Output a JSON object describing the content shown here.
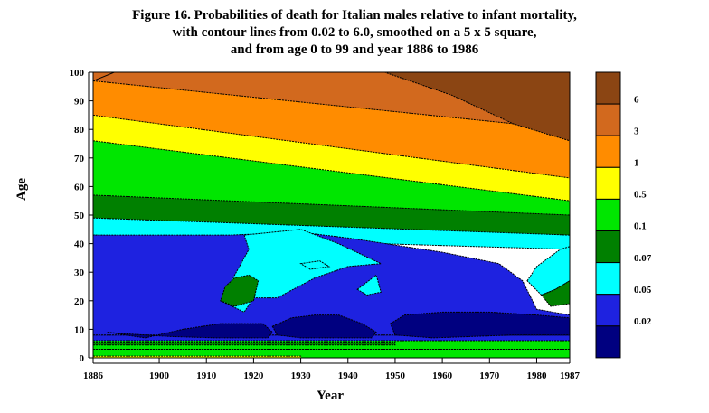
{
  "title_lines": [
    "Figure 16. Probabilities of death for Italian males relative to infant mortality,",
    "with contour lines from 0.02 to 6.0, smoothed on a 5 x 5 square,",
    "and from age 0 to 99 and year 1886 to 1986"
  ],
  "chart_data": {
    "type": "heatmap",
    "xlabel": "Year",
    "ylabel": "Age",
    "xlim": [
      1886,
      1987
    ],
    "ylim": [
      0,
      100
    ],
    "x_ticks": [
      1886,
      1900,
      1910,
      1920,
      1930,
      1940,
      1950,
      1960,
      1970,
      1980,
      1987
    ],
    "y_ticks": [
      0,
      10,
      20,
      30,
      40,
      50,
      60,
      70,
      80,
      90,
      100
    ],
    "legend": {
      "position": "right",
      "bins": [
        {
          "label": "6",
          "color": "#8B4513"
        },
        {
          "label": "3",
          "color": "#D2691E"
        },
        {
          "label": "1",
          "color": "#FF8C00"
        },
        {
          "label": "0.5",
          "color": "#FFFF00"
        },
        {
          "label": "0.1",
          "color": "#00E600"
        },
        {
          "label": "0.07",
          "color": "#008000"
        },
        {
          "label": "0.05",
          "color": "#00FFFF"
        },
        {
          "label": "0.02",
          "color": "#1E22E0"
        },
        {
          "label": "",
          "color": "#000080"
        }
      ]
    },
    "regions": [
      {
        "level": "0.1",
        "points": [
          [
            1886,
            0
          ],
          [
            1987,
            0
          ],
          [
            1987,
            3
          ],
          [
            1886,
            3
          ]
        ]
      },
      {
        "level": "0.5",
        "points": [
          [
            1886,
            0
          ],
          [
            1930,
            0
          ],
          [
            1930,
            0.6
          ],
          [
            1886,
            0.6
          ]
        ]
      },
      {
        "level": "0.1",
        "points": [
          [
            1886,
            3
          ],
          [
            1987,
            3
          ],
          [
            1987,
            8
          ],
          [
            1886,
            8
          ]
        ]
      },
      {
        "level": "0.02",
        "points": [
          [
            1886,
            6
          ],
          [
            1987,
            6
          ],
          [
            1987,
            8
          ],
          [
            1886,
            8
          ]
        ]
      },
      {
        "level": "0.07",
        "points": [
          [
            1886,
            4.5
          ],
          [
            1950,
            4.5
          ],
          [
            1950,
            5.5
          ],
          [
            1886,
            5.5
          ]
        ]
      },
      {
        "level": "0.02",
        "points": [
          [
            1886,
            8
          ],
          [
            1987,
            8
          ],
          [
            1987,
            15
          ],
          [
            1980,
            17
          ],
          [
            1977,
            27
          ],
          [
            1972,
            33
          ],
          [
            1960,
            37
          ],
          [
            1948,
            40
          ],
          [
            1940,
            42
          ],
          [
            1930,
            44
          ],
          [
            1915,
            43
          ],
          [
            1886,
            43
          ]
        ]
      },
      {
        "level": "0.05",
        "points": [
          [
            1918,
            43
          ],
          [
            1919,
            38
          ],
          [
            1916,
            29
          ],
          [
            1913,
            20
          ],
          [
            1918,
            16
          ],
          [
            1920,
            21
          ],
          [
            1925,
            21
          ],
          [
            1933,
            28
          ],
          [
            1940,
            32
          ],
          [
            1947,
            33
          ],
          [
            1938,
            40
          ],
          [
            1930,
            45
          ]
        ]
      },
      {
        "level": "0.07",
        "points": [
          [
            1914,
            25
          ],
          [
            1916,
            28
          ],
          [
            1919,
            29
          ],
          [
            1921,
            27
          ],
          [
            1920,
            20
          ],
          [
            1916,
            18
          ],
          [
            1913,
            20
          ]
        ]
      },
      {
        "level": "0.05",
        "points": [
          [
            1930,
            33
          ],
          [
            1934,
            34
          ],
          [
            1936,
            32
          ],
          [
            1932,
            31
          ]
        ]
      },
      {
        "level": "0.05",
        "points": [
          [
            1942,
            24
          ],
          [
            1946,
            29
          ],
          [
            1947,
            23
          ],
          [
            1944,
            22
          ]
        ]
      },
      {
        "level": "0.05",
        "points": [
          [
            1978,
            27
          ],
          [
            1980,
            32
          ],
          [
            1985,
            38
          ],
          [
            1987,
            39
          ],
          [
            1987,
            27
          ],
          [
            1984,
            24
          ],
          [
            1981,
            22
          ]
        ]
      },
      {
        "level": "0.07",
        "points": [
          [
            1981,
            22
          ],
          [
            1984,
            24
          ],
          [
            1987,
            27
          ],
          [
            1987,
            19
          ],
          [
            1983,
            18
          ]
        ]
      },
      {
        "level": "",
        "points": [
          [
            1889,
            9
          ],
          [
            1897,
            7
          ],
          [
            1905,
            10
          ],
          [
            1913,
            12
          ],
          [
            1922,
            12
          ],
          [
            1924,
            9
          ],
          [
            1923,
            7
          ],
          [
            1912,
            7
          ],
          [
            1902,
            7.5
          ],
          [
            1892,
            8.5
          ]
        ]
      },
      {
        "level": "",
        "points": [
          [
            1924,
            11
          ],
          [
            1928,
            14
          ],
          [
            1933,
            15
          ],
          [
            1938,
            15
          ],
          [
            1943,
            12
          ],
          [
            1946,
            9
          ],
          [
            1945,
            7
          ],
          [
            1930,
            7
          ],
          [
            1925,
            8
          ]
        ]
      },
      {
        "level": "",
        "points": [
          [
            1949,
            12
          ],
          [
            1952,
            15
          ],
          [
            1960,
            16
          ],
          [
            1970,
            16
          ],
          [
            1980,
            15
          ],
          [
            1987,
            14
          ],
          [
            1987,
            8
          ],
          [
            1975,
            8
          ],
          [
            1958,
            7
          ],
          [
            1950,
            8
          ]
        ]
      }
    ]
  }
}
